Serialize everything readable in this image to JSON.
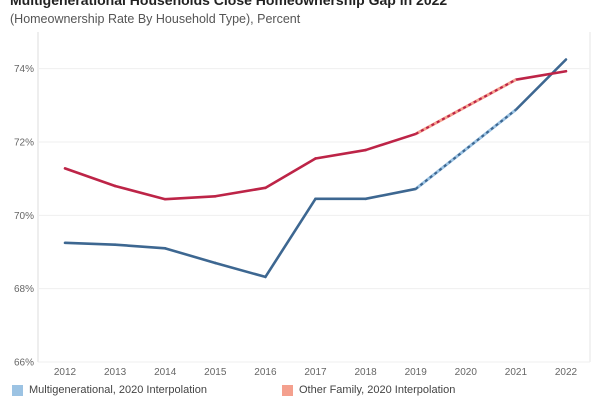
{
  "chart_data": {
    "type": "line",
    "title": "Multigenerational Households Close Homeownership Gap in 2022",
    "subtitle": "(Homeownership Rate By Household Type), Percent",
    "x": [
      2012,
      2013,
      2014,
      2015,
      2016,
      2017,
      2018,
      2019,
      2020,
      2021,
      2022
    ],
    "xlabels": [
      "2012",
      "2013",
      "2014",
      "2015",
      "2016",
      "2017",
      "2018",
      "2019",
      "2020",
      "2021",
      "2022"
    ],
    "ylim": [
      66,
      75
    ],
    "yticks": [
      66,
      68,
      70,
      72,
      74
    ],
    "ytick_labels": [
      "66%",
      "68%",
      "70%",
      "72%",
      "74%"
    ],
    "grid": true,
    "series": [
      {
        "key": "multigenerational",
        "color": "#3d6791",
        "interp_color": "#9cc3e3",
        "values": [
          69.25,
          69.2,
          69.1,
          68.7,
          68.32,
          70.45,
          70.45,
          70.72,
          null,
          72.88,
          74.25
        ]
      },
      {
        "key": "other-family",
        "color": "#bd2447",
        "interp_color": "#f4a08e",
        "values": [
          71.28,
          70.8,
          70.44,
          70.52,
          70.75,
          71.55,
          71.78,
          72.22,
          null,
          73.7,
          73.93
        ]
      }
    ],
    "legend": [
      {
        "label": "Multigenerational, 2020 Interpolation",
        "color": "#9cc3e3"
      },
      {
        "label": "Other Family, 2020 Interpolation",
        "color": "#f4a08e"
      }
    ],
    "legend_position": "bottom"
  }
}
